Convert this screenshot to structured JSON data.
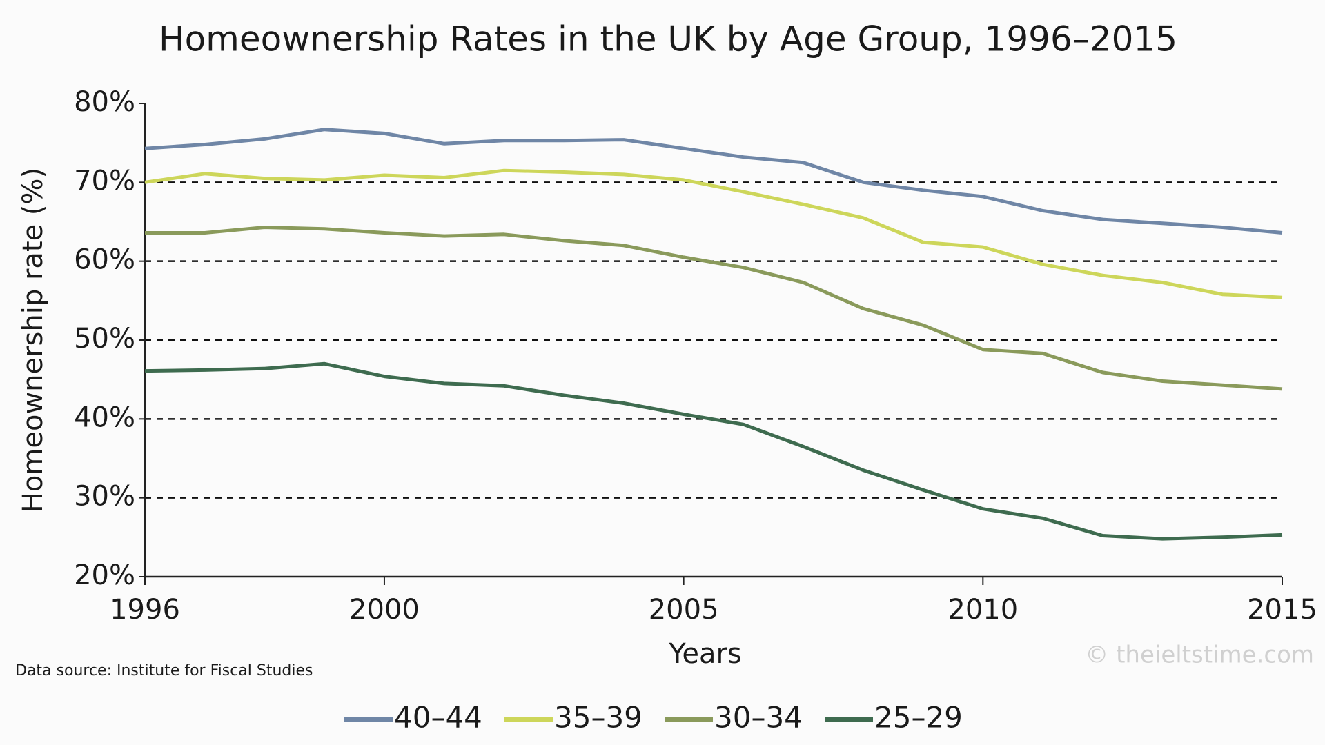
{
  "chart_data": {
    "type": "line",
    "title": "Homeownership Rates in the UK by Age Group, 1996–2015",
    "x_label": "Years",
    "y_label": "Homeownership rate (%)",
    "source_note": "Data source: Institute for Fiscal Studies",
    "watermark": "© theieltstime.com",
    "x": [
      1996,
      1997,
      1998,
      1999,
      2000,
      2001,
      2002,
      2003,
      2004,
      2005,
      2006,
      2007,
      2008,
      2009,
      2010,
      2011,
      2012,
      2013,
      2014,
      2015
    ],
    "series": [
      {
        "name": "40–44",
        "color": "#6f86a6",
        "values": [
          74.3,
          74.8,
          75.5,
          76.7,
          76.2,
          74.9,
          75.3,
          75.3,
          75.4,
          74.3,
          73.2,
          72.5,
          70.0,
          69.0,
          68.2,
          66.4,
          65.3,
          64.8,
          64.3,
          63.6
        ]
      },
      {
        "name": "35–39",
        "color": "#cdd65a",
        "values": [
          70.0,
          71.1,
          70.5,
          70.3,
          70.9,
          70.6,
          71.5,
          71.3,
          71.0,
          70.3,
          68.8,
          67.2,
          65.5,
          62.4,
          61.8,
          59.6,
          58.2,
          57.3,
          55.8,
          55.4
        ]
      },
      {
        "name": "30–34",
        "color": "#8a9a5b",
        "values": [
          63.6,
          63.6,
          64.3,
          64.1,
          63.6,
          63.2,
          63.4,
          62.6,
          62.0,
          60.5,
          59.2,
          57.3,
          54.0,
          51.9,
          48.8,
          48.3,
          45.9,
          44.8,
          44.3,
          43.8
        ]
      },
      {
        "name": "25–29",
        "color": "#3e6b4f",
        "values": [
          46.1,
          46.2,
          46.4,
          47.0,
          45.4,
          44.5,
          44.2,
          43.0,
          42.0,
          40.6,
          39.3,
          36.5,
          33.5,
          31.0,
          28.6,
          27.4,
          25.2,
          24.8,
          25.0,
          25.3
        ]
      }
    ],
    "xlim": [
      1996,
      2015
    ],
    "xticks": [
      1996,
      2000,
      2005,
      2010,
      2015
    ],
    "ylim": [
      20,
      80
    ],
    "yticks": [
      {
        "value": 20,
        "label": "20%"
      },
      {
        "value": 30,
        "label": "30%"
      },
      {
        "value": 40,
        "label": "40%"
      },
      {
        "value": 50,
        "label": "50%"
      },
      {
        "value": 60,
        "label": "60%"
      },
      {
        "value": 70,
        "label": "70%"
      },
      {
        "value": 80,
        "label": "80%"
      }
    ],
    "grid": true,
    "legend": "bottom"
  }
}
